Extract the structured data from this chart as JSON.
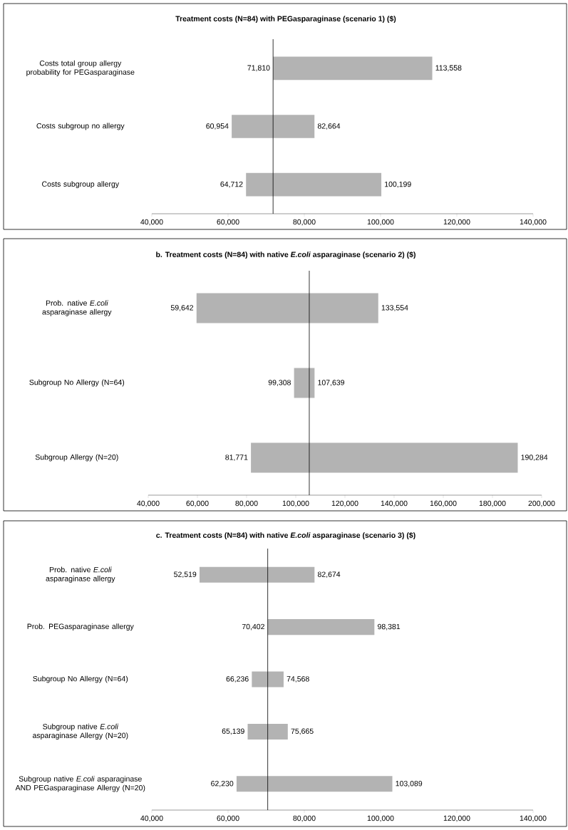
{
  "chart_data": [
    {
      "type": "bar",
      "orientation": "horizontal",
      "title": "Treatment costs (N=84) with PEGasparaginase (scenario 1) ($)",
      "categories": [
        "Costs total group allergy probability for PEGasparaginase",
        "Costs subgroup no allergy",
        "Costs subgroup allergy"
      ],
      "base": [
        71810,
        60954,
        64712
      ],
      "values": [
        41748,
        21710,
        35487
      ],
      "color": "#b3b3b3",
      "xlim": [
        40000,
        140000
      ],
      "xticks": [
        {
          "value": 40000,
          "label": "40,000"
        },
        {
          "value": 60000,
          "label": "60,000"
        },
        {
          "value": 80000,
          "label": "80,000"
        },
        {
          "value": 100000,
          "label": "100,000"
        },
        {
          "value": 120000,
          "label": "120,000"
        },
        {
          "value": 140000,
          "label": "140,000"
        }
      ],
      "ref_lines": [
        {
          "axis": "x",
          "value": 71810,
          "color": "#000000"
        }
      ],
      "annotations": [
        {
          "text": "71,810",
          "x": 71810,
          "y": "Costs total group allergy probability for PEGasparaginase"
        },
        {
          "text": "113,558",
          "x": 113558,
          "y": "Costs total group allergy probability for PEGasparaginase"
        },
        {
          "text": "60,954",
          "x": 60954,
          "y": "Costs subgroup no allergy"
        },
        {
          "text": "82,664",
          "x": 82664,
          "y": "Costs subgroup no allergy"
        },
        {
          "text": "64,712",
          "x": 64712,
          "y": "Costs subgroup allergy"
        },
        {
          "text": "100,199",
          "x": 100199,
          "y": "Costs subgroup allergy"
        }
      ]
    },
    {
      "type": "bar",
      "orientation": "horizontal",
      "title": "b. Treatment costs (N=84) with native *E.coli* asparaginase (scenario 2) ($)",
      "categories": [
        "Prob. native *E.coli* asparaginase allergy",
        "Subgroup No Allergy (N=64)",
        "Subgroup Allergy (N=20)"
      ],
      "base": [
        59642,
        99308,
        81771
      ],
      "values": [
        73912,
        8331,
        108513
      ],
      "color": "#b3b3b3",
      "xlim": [
        40000,
        200000
      ],
      "xticks": [
        {
          "value": 40000,
          "label": "40,000"
        },
        {
          "value": 60000,
          "label": "60,000"
        },
        {
          "value": 80000,
          "label": "80,000"
        },
        {
          "value": 100000,
          "label": "100,000"
        },
        {
          "value": 120000,
          "label": "120,000"
        },
        {
          "value": 140000,
          "label": "140,000"
        },
        {
          "value": 160000,
          "label": "160,000"
        },
        {
          "value": 180000,
          "label": "180,000"
        },
        {
          "value": 200000,
          "label": "200,000"
        }
      ],
      "ref_lines": [
        {
          "axis": "x",
          "value": 105500,
          "color": "#000000"
        }
      ],
      "annotations": [
        {
          "text": "59,642",
          "x": 59642,
          "y": "Prob. native *E.coli* asparaginase allergy"
        },
        {
          "text": "133,554",
          "x": 133554,
          "y": "Prob. native *E.coli* asparaginase allergy"
        },
        {
          "text": "99,308",
          "x": 99308,
          "y": "Subgroup No Allergy (N=64)"
        },
        {
          "text": "107,639",
          "x": 107639,
          "y": "Subgroup No Allergy (N=64)"
        },
        {
          "text": "81,771",
          "x": 81771,
          "y": "Subgroup Allergy (N=20)"
        },
        {
          "text": "190,284",
          "x": 190284,
          "y": "Subgroup Allergy (N=20)"
        }
      ]
    },
    {
      "type": "bar",
      "orientation": "horizontal",
      "title": "c. Treatment costs (N=84) with native *E.coli* asparaginase (scenario 3) ($)",
      "categories": [
        "Prob. native *E.coli* asparaginase allergy",
        "Prob. PEGasparaginase allergy",
        "Subgroup No Allergy (N=64)",
        "Subgroup native *E.coli* asparaginase Allergy (N=20)",
        "Subgroup native *E.coli* asparaginase AND PEGasparaginase Allergy (N=20)"
      ],
      "base": [
        52519,
        70402,
        66236,
        65139,
        62230
      ],
      "values": [
        30155,
        27979,
        8332,
        10526,
        40859
      ],
      "color": "#b3b3b3",
      "xlim": [
        40000,
        140000
      ],
      "xticks": [
        {
          "value": 40000,
          "label": "40,000"
        },
        {
          "value": 60000,
          "label": "60,000"
        },
        {
          "value": 80000,
          "label": "80,000"
        },
        {
          "value": 100000,
          "label": "100,000"
        },
        {
          "value": 120000,
          "label": "120,000"
        },
        {
          "value": 140000,
          "label": "140,000"
        }
      ],
      "ref_lines": [
        {
          "axis": "x",
          "value": 70402,
          "color": "#000000"
        }
      ],
      "annotations": [
        {
          "text": "52,519",
          "x": 52519,
          "y": "Prob. native *E.coli* asparaginase allergy"
        },
        {
          "text": "82,674",
          "x": 82674,
          "y": "Prob. native *E.coli* asparaginase allergy"
        },
        {
          "text": "70,402",
          "x": 70402,
          "y": "Prob. PEGasparaginase allergy"
        },
        {
          "text": "98,381",
          "x": 98381,
          "y": "Prob. PEGasparaginase allergy"
        },
        {
          "text": "66,236",
          "x": 66236,
          "y": "Subgroup No Allergy (N=64)"
        },
        {
          "text": "74,568",
          "x": 74568,
          "y": "Subgroup No Allergy (N=64)"
        },
        {
          "text": "65,139",
          "x": 65139,
          "y": "Subgroup native *E.coli* asparaginase Allergy (N=20)"
        },
        {
          "text": "75,665",
          "x": 75665,
          "y": "Subgroup native *E.coli* asparaginase Allergy (N=20)"
        },
        {
          "text": "62,230",
          "x": 62230,
          "y": "Subgroup native *E.coli* asparaginase AND PEGasparaginase Allergy (N=20)"
        },
        {
          "text": "103,089",
          "x": 103089,
          "y": "Subgroup native *E.coli* asparaginase AND PEGasparaginase Allergy (N=20)"
        }
      ]
    }
  ]
}
